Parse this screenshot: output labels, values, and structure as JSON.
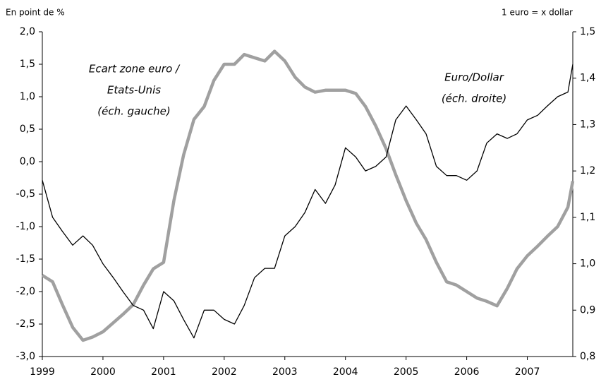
{
  "chart_data": {
    "type": "line",
    "left_axis_label": "En point de %",
    "right_axis_label": "1 euro = x dollar",
    "annotations": [
      {
        "lines": [
          "Ecart zone euro /",
          "Etats-Unis",
          "(éch. gauche)"
        ],
        "series": 0
      },
      {
        "lines": [
          "Euro/Dollar",
          "(éch. droite)"
        ],
        "series": 1
      }
    ],
    "x": [
      1999,
      1999.17,
      1999.33,
      1999.5,
      1999.67,
      1999.83,
      2000,
      2000.17,
      2000.33,
      2000.5,
      2000.67,
      2000.83,
      2001,
      2001.17,
      2001.33,
      2001.5,
      2001.67,
      2001.83,
      2002,
      2002.17,
      2002.33,
      2002.5,
      2002.67,
      2002.83,
      2003,
      2003.17,
      2003.33,
      2003.5,
      2003.67,
      2003.83,
      2004,
      2004.17,
      2004.33,
      2004.5,
      2004.67,
      2004.83,
      2005,
      2005.17,
      2005.33,
      2005.5,
      2005.67,
      2005.83,
      2006,
      2006.17,
      2006.33,
      2006.5,
      2006.67,
      2006.83,
      2007,
      2007.17,
      2007.33,
      2007.5,
      2007.67,
      2007.75
    ],
    "series": [
      {
        "color": "#a0a0a0",
        "width": 4.5,
        "axis": "y",
        "values": [
          -1.75,
          -1.85,
          -2.2,
          -2.55,
          -2.75,
          -2.7,
          -2.62,
          -2.48,
          -2.35,
          -2.2,
          -1.9,
          -1.65,
          -1.55,
          -0.6,
          0.1,
          0.65,
          0.85,
          1.25,
          1.5,
          1.5,
          1.65,
          1.6,
          1.55,
          1.7,
          1.55,
          1.3,
          1.15,
          1.07,
          1.1,
          1.1,
          1.1,
          1.05,
          0.85,
          0.55,
          0.2,
          -0.2,
          -0.6,
          -0.95,
          -1.2,
          -1.55,
          -1.85,
          -1.9,
          -2.0,
          -2.1,
          -2.15,
          -2.22,
          -1.95,
          -1.65,
          -1.45,
          -1.3,
          -1.15,
          -1.0,
          -0.7,
          -0.3
        ]
      },
      {
        "color": "#000000",
        "width": 1.3,
        "axis": "y2",
        "values": [
          1.18,
          1.1,
          1.07,
          1.04,
          1.06,
          1.04,
          1.0,
          0.97,
          0.94,
          0.91,
          0.9,
          0.86,
          0.94,
          0.92,
          0.88,
          0.84,
          0.9,
          0.9,
          0.88,
          0.87,
          0.91,
          0.97,
          0.99,
          0.99,
          1.06,
          1.08,
          1.11,
          1.16,
          1.13,
          1.17,
          1.25,
          1.23,
          1.2,
          1.21,
          1.23,
          1.31,
          1.34,
          1.31,
          1.28,
          1.21,
          1.19,
          1.19,
          1.18,
          1.2,
          1.26,
          1.28,
          1.27,
          1.28,
          1.31,
          1.32,
          1.34,
          1.36,
          1.37,
          1.43
        ]
      }
    ],
    "xlim": [
      1999,
      2007.75
    ],
    "xticks": [
      1999,
      2000,
      2001,
      2002,
      2003,
      2004,
      2005,
      2006,
      2007
    ],
    "ylim": [
      -3,
      2
    ],
    "yticks": [
      {
        "value": -3,
        "label": "-3,0"
      },
      {
        "value": -2.5,
        "label": "-2,5"
      },
      {
        "value": -2,
        "label": "-2,0"
      },
      {
        "value": -1.5,
        "label": "-1,5"
      },
      {
        "value": -1,
        "label": "-1,0"
      },
      {
        "value": -0.5,
        "label": "-0,5"
      },
      {
        "value": 0,
        "label": "0,0"
      },
      {
        "value": 0.5,
        "label": "0,5"
      },
      {
        "value": 1,
        "label": "1,0"
      },
      {
        "value": 1.5,
        "label": "1,5"
      },
      {
        "value": 2,
        "label": "2,0"
      }
    ],
    "y2lim": [
      0.8,
      1.5
    ],
    "y2ticks": [
      {
        "value": 0.8,
        "label": "0,8"
      },
      {
        "value": 0.9,
        "label": "0,9"
      },
      {
        "value": 1,
        "label": "1,0"
      },
      {
        "value": 1.1,
        "label": "1,1"
      },
      {
        "value": 1.2,
        "label": "1,2"
      },
      {
        "value": 1.3,
        "label": "1,3"
      },
      {
        "value": 1.4,
        "label": "1,4"
      },
      {
        "value": 1.5,
        "label": "1,5"
      }
    ]
  }
}
